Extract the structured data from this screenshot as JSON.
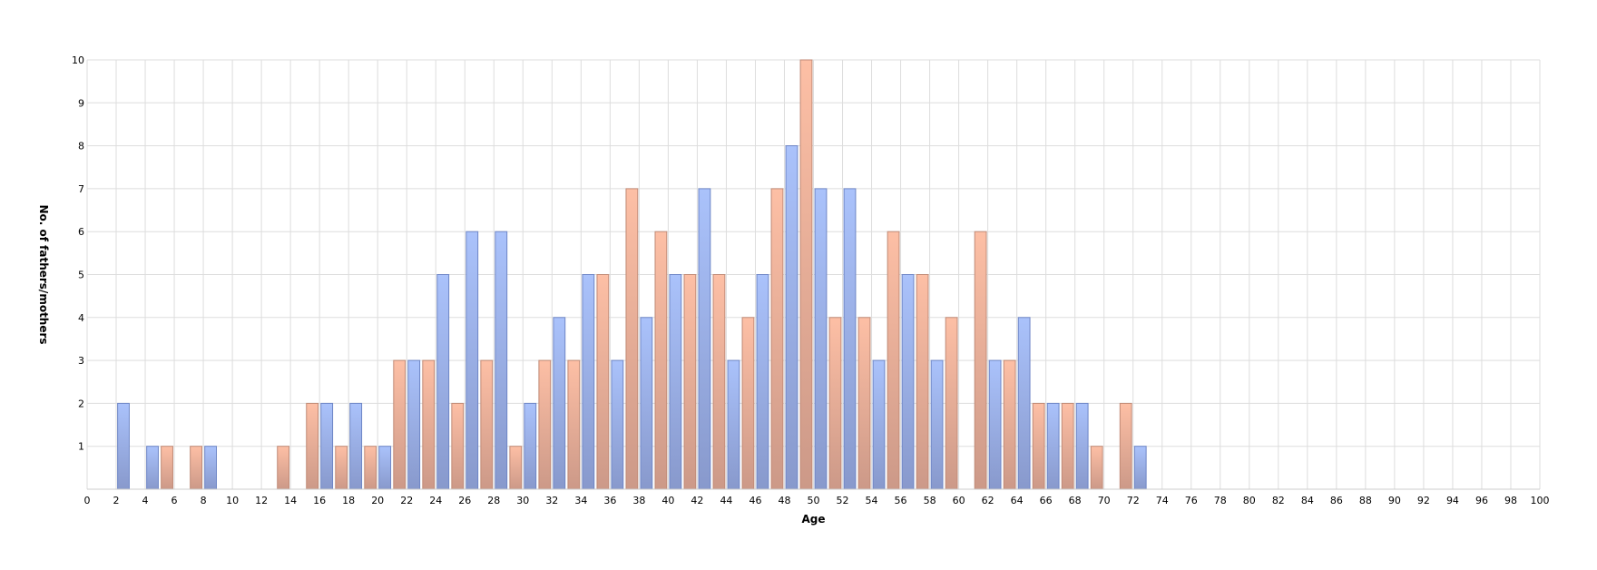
{
  "chart_data": {
    "type": "bar",
    "title": "",
    "xlabel": "Age",
    "ylabel": "No. of fathers/mothers",
    "xlim": [
      0,
      100
    ],
    "ylim": [
      0,
      10
    ],
    "x_ticks": [
      0,
      2,
      4,
      6,
      8,
      10,
      12,
      14,
      16,
      18,
      20,
      22,
      24,
      26,
      28,
      30,
      32,
      34,
      36,
      38,
      40,
      42,
      44,
      46,
      48,
      50,
      52,
      54,
      56,
      58,
      60,
      62,
      64,
      66,
      68,
      70,
      72,
      74,
      76,
      78,
      80,
      82,
      84,
      86,
      88,
      90,
      92,
      94,
      96,
      98,
      100
    ],
    "y_ticks": [
      1,
      2,
      3,
      4,
      5,
      6,
      7,
      8,
      9,
      10
    ],
    "grid": true,
    "legend": "none",
    "series": [
      {
        "color": "#a4bdf5",
        "x": [
          2.5,
          4.5,
          8.5,
          16.5,
          18.5,
          20.5,
          22.5,
          24.5,
          26.5,
          28.5,
          30.5,
          32.5,
          34.5,
          36.5,
          38.5,
          40.5,
          42.5,
          44.5,
          46.5,
          48.5,
          50.5,
          52.5,
          54.5,
          56.5,
          58.5,
          62.5,
          64.5,
          66.5,
          68.5,
          72.5
        ],
        "values": [
          2,
          1,
          1,
          2,
          2,
          1,
          3,
          5,
          6,
          6,
          2,
          4,
          5,
          3,
          4,
          5,
          7,
          3,
          5,
          8,
          7,
          7,
          3,
          5,
          3,
          3,
          4,
          2,
          2,
          1
        ]
      },
      {
        "color": "#f7b9a0",
        "x": [
          5.5,
          7.5,
          13.5,
          15.5,
          17.5,
          19.5,
          21.5,
          23.5,
          25.5,
          27.5,
          29.5,
          31.5,
          33.5,
          35.5,
          37.5,
          39.5,
          41.5,
          43.5,
          45.5,
          47.5,
          49.5,
          51.5,
          53.5,
          55.5,
          57.5,
          59.5,
          61.5,
          63.5,
          65.5,
          67.5,
          69.5,
          71.5
        ],
        "values": [
          1,
          1,
          1,
          2,
          1,
          1,
          3,
          3,
          2,
          3,
          1,
          3,
          3,
          5,
          7,
          6,
          5,
          5,
          4,
          7,
          10,
          4,
          4,
          6,
          5,
          4,
          6,
          3,
          2,
          2,
          1,
          2
        ]
      }
    ]
  }
}
